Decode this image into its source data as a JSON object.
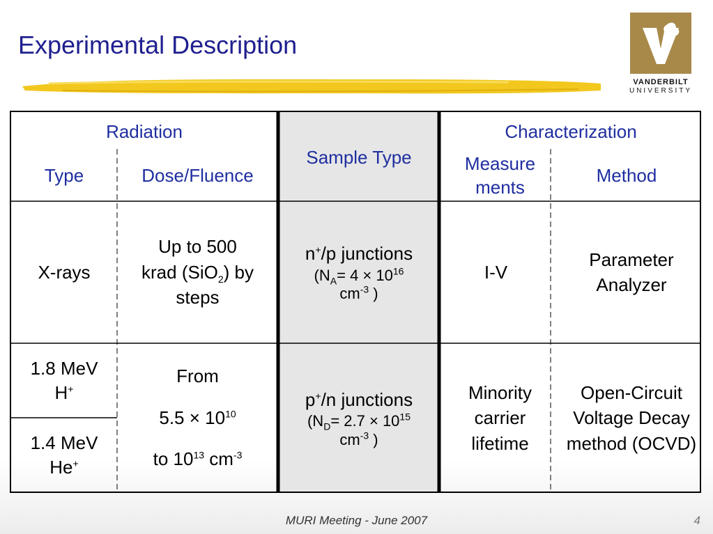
{
  "slide": {
    "title": "Experimental Description",
    "footer": "MURI Meeting - June 2007",
    "page_number": "4"
  },
  "logo": {
    "line1": "VANDERBILT",
    "line2": "UNIVERSITY",
    "color": "#a8894a"
  },
  "headers": {
    "radiation": "Radiation",
    "type": "Type",
    "dose_fluence": "Dose/Fluence",
    "sample_type": "Sample Type",
    "characterization": "Characterization",
    "measurements": "Measure ments",
    "method": "Method"
  },
  "row1": {
    "type": "X-rays",
    "dose_a": "Up to 500",
    "dose_b": "krad (SiO",
    "dose_b_sub": "2",
    "dose_c": ") by",
    "dose_d": "steps",
    "sample_a": "n",
    "sample_a_sup": "+",
    "sample_b": "/p junctions",
    "sample_c": "(N",
    "sample_c_sub": "A",
    "sample_d": "= 4 × 10",
    "sample_d_sup": "16",
    "sample_e": "cm",
    "sample_e_sup": "-3",
    "sample_f": " )",
    "measurement": "I-V",
    "method": "Parameter Analyzer"
  },
  "row2": {
    "type_a": "1.8 MeV",
    "type_a_ion": "H",
    "type_a_sup": "+",
    "type_b": "1.4 MeV",
    "type_b_ion": "He",
    "type_b_sup": "+",
    "dose_from": "From",
    "dose_low": "5.5 × 10",
    "dose_low_sup": "10",
    "dose_to": "to 10",
    "dose_to_sup": "13",
    "dose_unit": " cm",
    "dose_unit_sup": "-3",
    "sample_a": "p",
    "sample_a_sup": "+",
    "sample_b": "/n junctions",
    "sample_c": "(N",
    "sample_c_sub": "D",
    "sample_d": "= 2.7 × 10",
    "sample_d_sup": "15",
    "sample_e": "cm",
    "sample_e_sup": "-3",
    "sample_f": " )",
    "measurement": "Minority carrier lifetime",
    "method": "Open-Circuit Voltage Decay method (OCVD)"
  }
}
